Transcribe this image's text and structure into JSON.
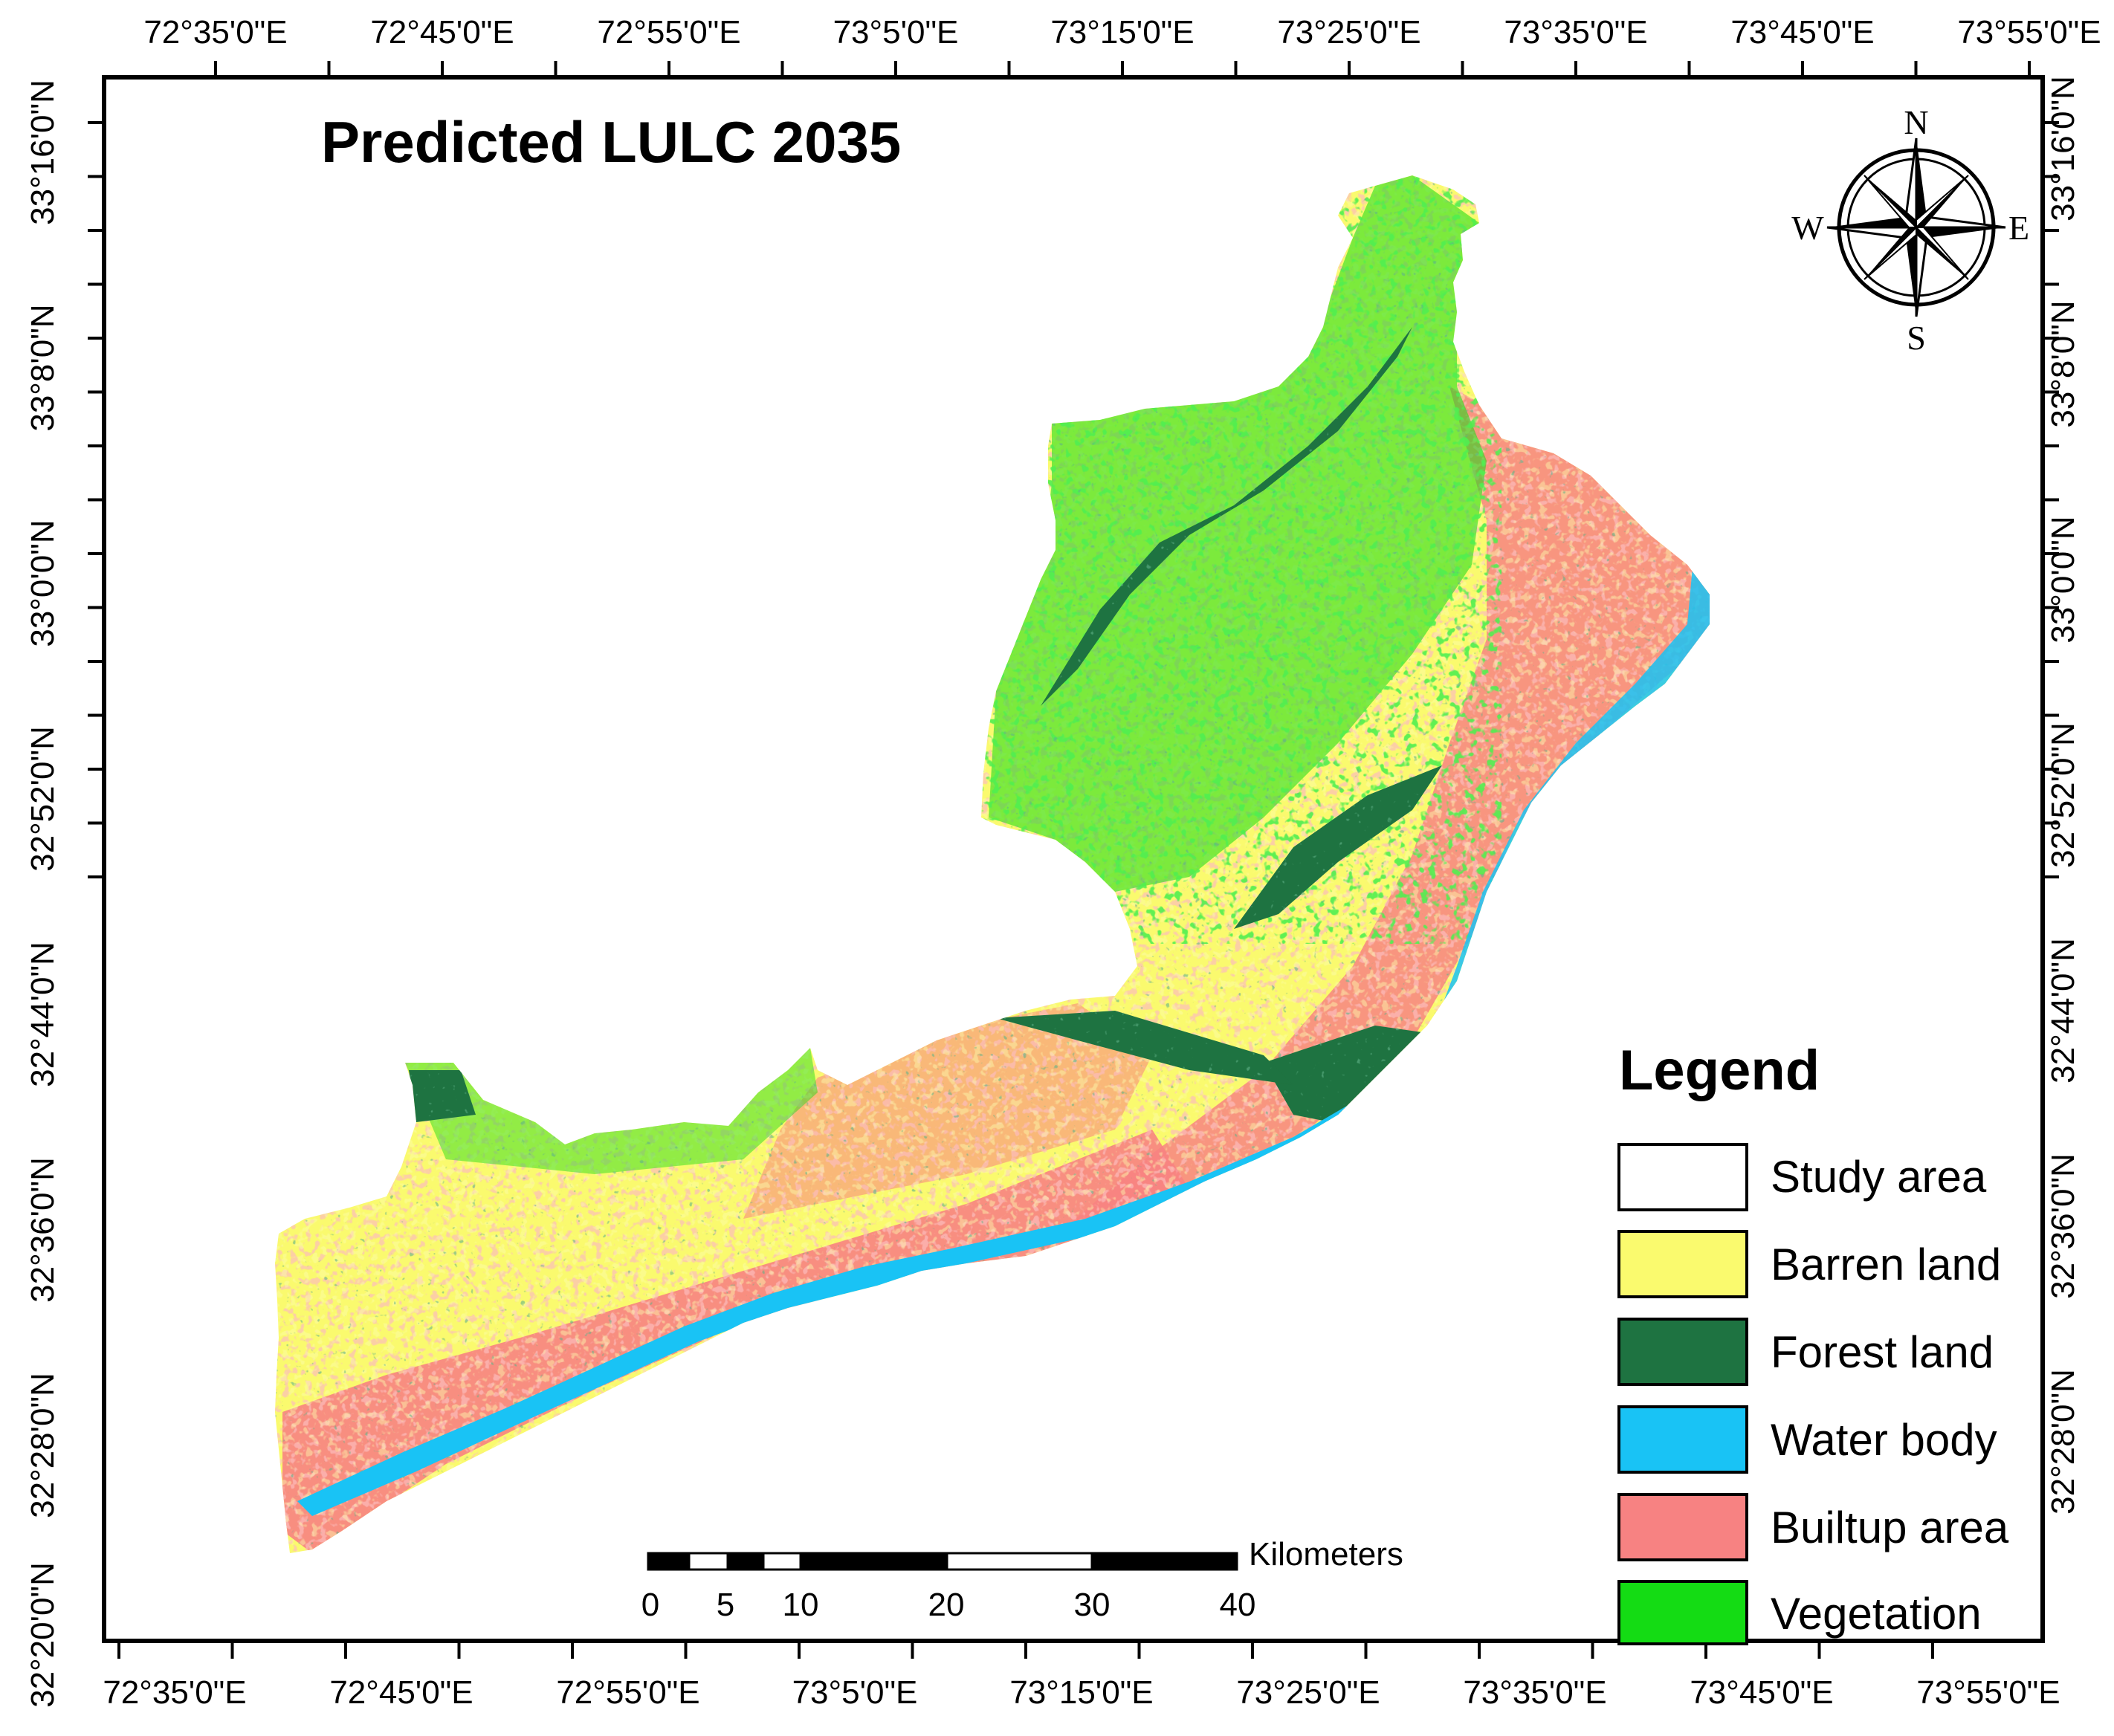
{
  "title": "Predicted LULC 2035",
  "axes": {
    "top_labels": [
      "72°35'0\"E",
      "72°45'0\"E",
      "72°55'0\"E",
      "73°5'0\"E",
      "73°15'0\"E",
      "73°25'0\"E",
      "73°35'0\"E",
      "73°45'0\"E",
      "73°55'0\"E"
    ],
    "bottom_labels": [
      "72°35'0\"E",
      "72°45'0\"E",
      "72°55'0\"E",
      "73°5'0\"E",
      "73°15'0\"E",
      "73°25'0\"E",
      "73°35'0\"E",
      "73°45'0\"E",
      "73°55'0\"E"
    ],
    "left_labels": [
      "33°16'0\"N",
      "33°8'0\"N",
      "33°0'0\"N",
      "32°52'0\"N",
      "32°44'0\"N",
      "32°36'0\"N",
      "32°28'0\"N",
      "32°20'0\"N"
    ],
    "right_labels": [
      "33°16'0\"N",
      "33°8'0\"N",
      "33°0'0\"N",
      "32°52'0\"N",
      "32°44'0\"N",
      "32°36'0\"N",
      "32°28'0\"N"
    ]
  },
  "legend": {
    "title": "Legend",
    "items": [
      {
        "label": "Study area",
        "color": "#ffffff"
      },
      {
        "label": "Barren land",
        "color": "#fafa6e"
      },
      {
        "label": "Forest land",
        "color": "#1e7341"
      },
      {
        "label": "Water body",
        "color": "#19c3f5"
      },
      {
        "label": "Builtup area",
        "color": "#f78282"
      },
      {
        "label": "Vegetation",
        "color": "#14dc14"
      }
    ]
  },
  "scale_bar": {
    "unit": "Kilometers",
    "ticks": [
      "0",
      "5",
      "10",
      "20",
      "30",
      "40"
    ]
  },
  "compass": {
    "n": "N",
    "s": "S",
    "e": "E",
    "w": "W"
  },
  "colors": {
    "barren": "#fafa6e",
    "forest": "#1e7341",
    "water": "#19c3f5",
    "builtup": "#f78282",
    "vegetation": "#14dc14"
  }
}
